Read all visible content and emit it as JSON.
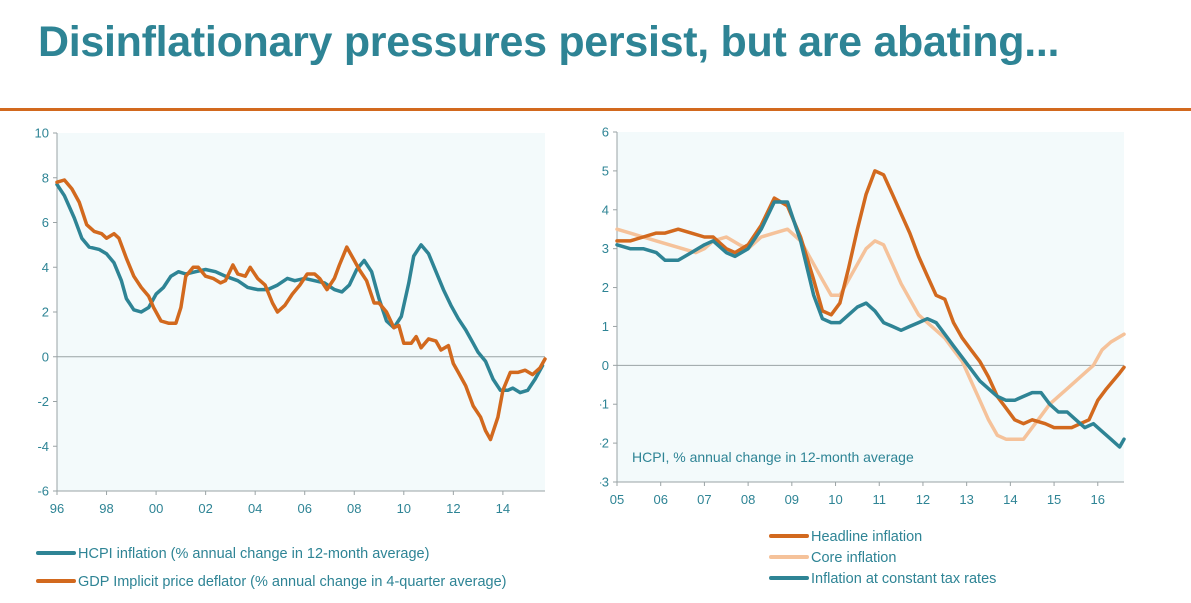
{
  "page": {
    "title": "Disinflationary pressures persist, but are abating..."
  },
  "colors": {
    "teal": "#2e8495",
    "orange": "#d2691e",
    "light_orange": "#f5c29a",
    "plot_bg": "#f3fafb",
    "axis": "#9aa3a5"
  },
  "chart_data": [
    {
      "type": "line",
      "title": "",
      "xlabel": "",
      "ylabel": "",
      "xlim": [
        1996,
        2015.7
      ],
      "ylim": [
        -6,
        10
      ],
      "grid": false,
      "legend_position": "bottom-left",
      "x_ticks": [
        1996,
        1998,
        2000,
        2002,
        2004,
        2006,
        2008,
        2010,
        2012,
        2014
      ],
      "x_tick_labels": [
        "96",
        "98",
        "00",
        "02",
        "04",
        "06",
        "08",
        "10",
        "12",
        "14"
      ],
      "y_ticks": [
        10,
        8,
        6,
        4,
        2,
        0,
        -2,
        -4,
        -6
      ],
      "y_tick_labels": [
        "10",
        "8",
        "6",
        "4",
        "2",
        "0",
        "-2",
        "-4",
        "-6"
      ],
      "series": [
        {
          "name": "HCPI inflation (% annual change in 12-month average)",
          "color": "#2e8495",
          "x": [
            1996.0,
            1996.3,
            1996.7,
            1997.0,
            1997.3,
            1997.7,
            1998.0,
            1998.3,
            1998.6,
            1998.8,
            1999.1,
            1999.4,
            1999.7,
            2000.0,
            2000.3,
            2000.6,
            2000.9,
            2001.2,
            2001.6,
            2002.0,
            2002.4,
            2002.8,
            2003.3,
            2003.7,
            2004.1,
            2004.5,
            2004.9,
            2005.3,
            2005.6,
            2006.0,
            2006.4,
            2006.8,
            2007.2,
            2007.5,
            2007.8,
            2008.1,
            2008.4,
            2008.7,
            2009.0,
            2009.3,
            2009.6,
            2009.9,
            2010.2,
            2010.4,
            2010.7,
            2011.0,
            2011.3,
            2011.6,
            2011.9,
            2012.2,
            2012.5,
            2012.8,
            2013.0,
            2013.3,
            2013.6,
            2013.9,
            2014.2,
            2014.4,
            2014.7,
            2015.0,
            2015.3,
            2015.6
          ],
          "values": [
            7.7,
            7.2,
            6.2,
            5.3,
            4.9,
            4.8,
            4.6,
            4.2,
            3.4,
            2.6,
            2.1,
            2.0,
            2.2,
            2.8,
            3.1,
            3.6,
            3.8,
            3.7,
            3.8,
            3.9,
            3.8,
            3.6,
            3.4,
            3.1,
            3.0,
            3.0,
            3.2,
            3.5,
            3.4,
            3.5,
            3.4,
            3.3,
            3.0,
            2.9,
            3.2,
            3.9,
            4.3,
            3.8,
            2.6,
            1.6,
            1.3,
            1.8,
            3.3,
            4.5,
            5.0,
            4.6,
            3.8,
            3.0,
            2.3,
            1.7,
            1.2,
            0.6,
            0.2,
            -0.2,
            -1.0,
            -1.5,
            -1.5,
            -1.4,
            -1.6,
            -1.5,
            -1.0,
            -0.4
          ]
        },
        {
          "name": "GDP Implicit price deflator (% annual change in 4-quarter average)",
          "color": "#d2691e",
          "x": [
            1996.0,
            1996.3,
            1996.6,
            1996.9,
            1997.2,
            1997.5,
            1997.8,
            1998.0,
            1998.3,
            1998.5,
            1998.8,
            1999.1,
            1999.4,
            1999.7,
            1999.9,
            2000.2,
            2000.5,
            2000.8,
            2001.0,
            2001.2,
            2001.5,
            2001.7,
            2002.0,
            2002.3,
            2002.6,
            2002.8,
            2003.1,
            2003.3,
            2003.6,
            2003.8,
            2004.1,
            2004.4,
            2004.7,
            2004.9,
            2005.2,
            2005.5,
            2005.8,
            2006.1,
            2006.4,
            2006.6,
            2006.9,
            2007.2,
            2007.4,
            2007.7,
            2008.0,
            2008.2,
            2008.5,
            2008.8,
            2009.0,
            2009.3,
            2009.6,
            2009.8,
            2010.0,
            2010.3,
            2010.5,
            2010.7,
            2011.0,
            2011.3,
            2011.5,
            2011.8,
            2012.0,
            2012.2,
            2012.5,
            2012.8,
            2013.1,
            2013.3,
            2013.5,
            2013.8,
            2014.0,
            2014.3,
            2014.6,
            2014.9,
            2015.2,
            2015.5,
            2015.7
          ],
          "values": [
            7.8,
            7.9,
            7.5,
            6.9,
            5.9,
            5.6,
            5.5,
            5.3,
            5.5,
            5.3,
            4.4,
            3.6,
            3.1,
            2.7,
            2.2,
            1.6,
            1.5,
            1.5,
            2.2,
            3.6,
            4.0,
            4.0,
            3.6,
            3.5,
            3.3,
            3.4,
            4.1,
            3.7,
            3.6,
            4.0,
            3.5,
            3.2,
            2.4,
            2.0,
            2.3,
            2.8,
            3.2,
            3.7,
            3.7,
            3.5,
            3.0,
            3.5,
            4.1,
            4.9,
            4.3,
            3.9,
            3.4,
            2.4,
            2.4,
            2.0,
            1.3,
            1.4,
            0.6,
            0.6,
            0.9,
            0.4,
            0.8,
            0.7,
            0.3,
            0.5,
            -0.3,
            -0.7,
            -1.3,
            -2.2,
            -2.7,
            -3.3,
            -3.7,
            -2.7,
            -1.5,
            -0.7,
            -0.7,
            -0.6,
            -0.8,
            -0.5,
            -0.1
          ]
        }
      ]
    },
    {
      "type": "line",
      "title": "",
      "xlabel": "",
      "ylabel": "",
      "annotation": "HCPI, % annual change in 12-month average",
      "xlim": [
        2005,
        2016.6
      ],
      "ylim": [
        -3,
        6
      ],
      "grid": false,
      "legend_position": "bottom-center",
      "x_ticks": [
        2005,
        2006,
        2007,
        2008,
        2009,
        2010,
        2011,
        2012,
        2013,
        2014,
        2015,
        2016
      ],
      "x_tick_labels": [
        "05",
        "06",
        "07",
        "08",
        "09",
        "10",
        "11",
        "12",
        "13",
        "14",
        "15",
        "16"
      ],
      "y_ticks": [
        6,
        5,
        4,
        3,
        2,
        1,
        0,
        -1,
        -2,
        -3
      ],
      "y_tick_labels": [
        "6",
        "5",
        "4",
        "3",
        "2",
        "1",
        "0",
        "-1",
        "-2",
        "-3"
      ],
      "series": [
        {
          "name": "Headline inflation",
          "color": "#d2691e",
          "x": [
            2005.0,
            2005.3,
            2005.6,
            2005.9,
            2006.1,
            2006.4,
            2006.7,
            2007.0,
            2007.2,
            2007.5,
            2007.7,
            2008.0,
            2008.3,
            2008.6,
            2008.9,
            2009.2,
            2009.5,
            2009.7,
            2009.9,
            2010.1,
            2010.3,
            2010.5,
            2010.7,
            2010.9,
            2011.1,
            2011.3,
            2011.5,
            2011.7,
            2011.9,
            2012.1,
            2012.3,
            2012.5,
            2012.7,
            2012.9,
            2013.1,
            2013.3,
            2013.5,
            2013.7,
            2013.9,
            2014.1,
            2014.3,
            2014.5,
            2014.8,
            2015.0,
            2015.2,
            2015.4,
            2015.6,
            2015.8,
            2016.0,
            2016.2,
            2016.5,
            2016.6
          ],
          "values": [
            3.2,
            3.2,
            3.3,
            3.4,
            3.4,
            3.5,
            3.4,
            3.3,
            3.3,
            3.0,
            2.9,
            3.1,
            3.6,
            4.3,
            4.1,
            3.3,
            2.2,
            1.4,
            1.3,
            1.6,
            2.5,
            3.5,
            4.4,
            5.0,
            4.9,
            4.4,
            3.9,
            3.4,
            2.8,
            2.3,
            1.8,
            1.7,
            1.1,
            0.7,
            0.4,
            0.1,
            -0.3,
            -0.8,
            -1.1,
            -1.4,
            -1.5,
            -1.4,
            -1.5,
            -1.6,
            -1.6,
            -1.6,
            -1.5,
            -1.4,
            -0.9,
            -0.6,
            -0.2,
            -0.05
          ]
        },
        {
          "name": "Core inflation",
          "color": "#f5c29a",
          "x": [
            2005.0,
            2005.3,
            2005.6,
            2005.9,
            2006.2,
            2006.5,
            2006.8,
            2007.0,
            2007.2,
            2007.5,
            2007.8,
            2008.0,
            2008.3,
            2008.6,
            2008.9,
            2009.2,
            2009.5,
            2009.7,
            2009.9,
            2010.1,
            2010.3,
            2010.5,
            2010.7,
            2010.9,
            2011.1,
            2011.3,
            2011.5,
            2011.7,
            2011.9,
            2012.1,
            2012.3,
            2012.5,
            2012.7,
            2012.9,
            2013.1,
            2013.3,
            2013.5,
            2013.7,
            2013.9,
            2014.1,
            2014.3,
            2014.5,
            2014.7,
            2014.9,
            2015.1,
            2015.3,
            2015.5,
            2015.7,
            2015.9,
            2016.1,
            2016.3,
            2016.6
          ],
          "values": [
            3.5,
            3.4,
            3.3,
            3.2,
            3.1,
            3.0,
            2.9,
            3.0,
            3.2,
            3.3,
            3.1,
            3.0,
            3.3,
            3.4,
            3.5,
            3.2,
            2.6,
            2.2,
            1.8,
            1.8,
            2.2,
            2.6,
            3.0,
            3.2,
            3.1,
            2.6,
            2.1,
            1.7,
            1.3,
            1.1,
            0.9,
            0.7,
            0.4,
            0.1,
            -0.4,
            -0.9,
            -1.4,
            -1.8,
            -1.9,
            -1.9,
            -1.9,
            -1.6,
            -1.3,
            -1.0,
            -0.8,
            -0.6,
            -0.4,
            -0.2,
            0.0,
            0.4,
            0.6,
            0.8
          ]
        },
        {
          "name": "Inflation at constant tax rates",
          "color": "#2e8495",
          "x": [
            2005.0,
            2005.3,
            2005.6,
            2005.9,
            2006.1,
            2006.4,
            2006.7,
            2007.0,
            2007.2,
            2007.5,
            2007.7,
            2008.0,
            2008.3,
            2008.6,
            2008.9,
            2009.2,
            2009.5,
            2009.7,
            2009.9,
            2010.1,
            2010.3,
            2010.5,
            2010.7,
            2010.9,
            2011.1,
            2011.3,
            2011.5,
            2011.7,
            2011.9,
            2012.1,
            2012.3,
            2012.5,
            2012.7,
            2012.9,
            2013.1,
            2013.3,
            2013.5,
            2013.7,
            2013.9,
            2014.1,
            2014.3,
            2014.5,
            2014.7,
            2014.9,
            2015.1,
            2015.3,
            2015.5,
            2015.7,
            2015.9,
            2016.1,
            2016.3,
            2016.5,
            2016.6
          ],
          "values": [
            3.1,
            3.0,
            3.0,
            2.9,
            2.7,
            2.7,
            2.9,
            3.1,
            3.2,
            2.9,
            2.8,
            3.0,
            3.5,
            4.2,
            4.2,
            3.2,
            1.8,
            1.2,
            1.1,
            1.1,
            1.3,
            1.5,
            1.6,
            1.4,
            1.1,
            1.0,
            0.9,
            1.0,
            1.1,
            1.2,
            1.1,
            0.8,
            0.5,
            0.2,
            -0.1,
            -0.4,
            -0.6,
            -0.8,
            -0.9,
            -0.9,
            -0.8,
            -0.7,
            -0.7,
            -1.0,
            -1.2,
            -1.2,
            -1.4,
            -1.6,
            -1.5,
            -1.7,
            -1.9,
            -2.1,
            -1.9
          ]
        }
      ]
    }
  ]
}
